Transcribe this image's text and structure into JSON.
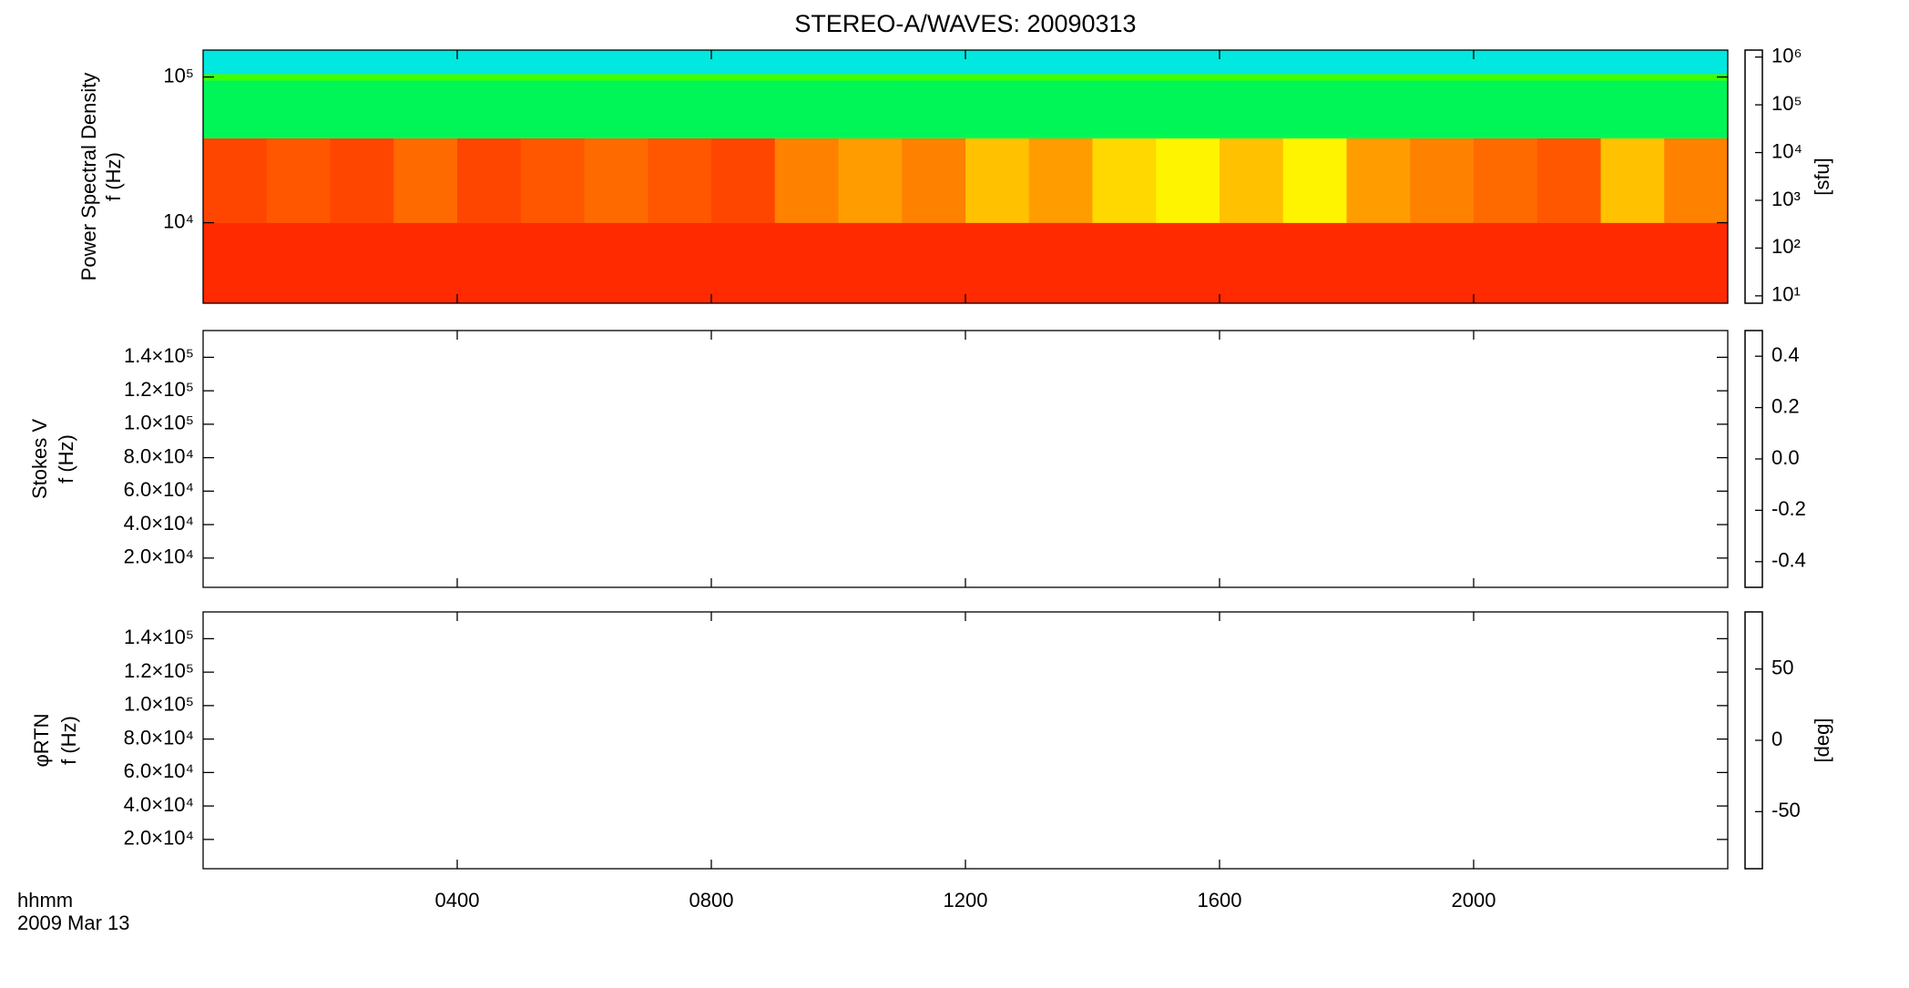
{
  "chart_data": {
    "type": "heatmap",
    "title": "STEREO-A/WAVES: 20090313",
    "xlim": [
      0,
      1440
    ],
    "xticks": [
      {
        "value": 240,
        "label": "0400"
      },
      {
        "value": 480,
        "label": "0800"
      },
      {
        "value": 720,
        "label": "1200"
      },
      {
        "value": 960,
        "label": "1600"
      },
      {
        "value": 1200,
        "label": "2000"
      }
    ],
    "xlabel": [
      "hhmm",
      "2009 Mar 13"
    ],
    "colormap": [
      "#000000",
      "#7a00b0",
      "#0000ff",
      "#00e5ff",
      "#00ff00",
      "#ffff00",
      "#ff0000"
    ],
    "panels": [
      {
        "type": "heatmap",
        "ylog": true,
        "ylim": [
          2800,
          153000
        ],
        "yticks": [
          {
            "value": 10000,
            "label": "10⁴"
          },
          {
            "value": 100000,
            "label": "10⁵"
          }
        ],
        "ylabel": [
          "Power Spectral Density",
          "f (Hz)"
        ],
        "clog": true,
        "clim": [
          7,
          1400000
        ],
        "cticks": [
          {
            "value": 10,
            "label": "10¹"
          },
          {
            "value": 100,
            "label": "10²"
          },
          {
            "value": 1000,
            "label": "10³"
          },
          {
            "value": 10000,
            "label": "10⁴"
          },
          {
            "value": 100000,
            "label": "10⁵"
          },
          {
            "value": 1000000,
            "label": "10⁶"
          }
        ],
        "clabel": "[sfu]",
        "x": [
          0,
          60,
          120,
          180,
          240,
          300,
          360,
          420,
          480,
          540,
          600,
          660,
          720,
          780,
          840,
          900,
          960,
          1020,
          1080,
          1140,
          1200,
          1260,
          1320,
          1380,
          1440
        ],
        "y": [
          2800,
          10000,
          38000,
          95000,
          105000,
          153000
        ],
        "z": [
          [
            1000000,
            1000000,
            1000000,
            1000000,
            1000000,
            1000000,
            1000000,
            1000000,
            1000000,
            1000000,
            1000000,
            1000000,
            1000000,
            1000000,
            1000000,
            1000000,
            1000000,
            1000000,
            1000000,
            1000000,
            1000000,
            1000000,
            1000000,
            1000000
          ],
          [
            800000,
            700000,
            800000,
            600000,
            800000,
            700000,
            600000,
            700000,
            800000,
            500000,
            400000,
            500000,
            300000,
            400000,
            250000,
            200000,
            300000,
            200000,
            400000,
            500000,
            600000,
            700000,
            300000,
            500000
          ],
          [
            12000,
            12000,
            12000,
            12000,
            12000,
            12000,
            12000,
            12000,
            12000,
            12000,
            12000,
            12000,
            12000,
            12000,
            12000,
            12000,
            12000,
            12000,
            12000,
            12000,
            12000,
            12000,
            12000,
            12000
          ],
          [
            40000,
            40000,
            40000,
            40000,
            40000,
            40000,
            40000,
            40000,
            40000,
            40000,
            40000,
            40000,
            40000,
            40000,
            40000,
            40000,
            40000,
            40000,
            40000,
            40000,
            40000,
            40000,
            40000,
            40000
          ],
          [
            4000,
            4000,
            4000,
            4000,
            4000,
            4000,
            4000,
            4000,
            4000,
            4000,
            4000,
            4000,
            4000,
            4000,
            4000,
            4000,
            4000,
            4000,
            4000,
            4000,
            4000,
            4000,
            4000,
            4000
          ]
        ]
      },
      {
        "type": "heatmap",
        "ylog": false,
        "ylim": [
          2500,
          156000
        ],
        "yticks": [
          {
            "value": 20000,
            "label": "2.0×10⁴"
          },
          {
            "value": 40000,
            "label": "4.0×10⁴"
          },
          {
            "value": 60000,
            "label": "6.0×10⁴"
          },
          {
            "value": 80000,
            "label": "8.0×10⁴"
          },
          {
            "value": 100000,
            "label": "1.0×10⁵"
          },
          {
            "value": 120000,
            "label": "1.2×10⁵"
          },
          {
            "value": 140000,
            "label": "1.4×10⁵"
          }
        ],
        "ylabel": [
          "Stokes V",
          "f (Hz)"
        ],
        "clog": false,
        "clim": [
          -0.5,
          0.5
        ],
        "cticks": [
          -0.4,
          -0.2,
          {
            "value": 0,
            "label": "0.0"
          },
          0.2,
          0.4
        ]
      },
      {
        "type": "heatmap",
        "ylog": false,
        "ylim": [
          2500,
          156000
        ],
        "yticks": [
          {
            "value": 20000,
            "label": "2.0×10⁴"
          },
          {
            "value": 40000,
            "label": "4.0×10⁴"
          },
          {
            "value": 60000,
            "label": "6.0×10⁴"
          },
          {
            "value": 80000,
            "label": "8.0×10⁴"
          },
          {
            "value": 100000,
            "label": "1.0×10⁵"
          },
          {
            "value": 120000,
            "label": "1.2×10⁵"
          },
          {
            "value": 140000,
            "label": "1.4×10⁵"
          }
        ],
        "ylabel": [
          "φRTN",
          "f (Hz)"
        ],
        "clog": false,
        "clim": [
          -90,
          90
        ],
        "cticks": [
          -50,
          0,
          50
        ],
        "clabel": "[deg]"
      }
    ]
  }
}
